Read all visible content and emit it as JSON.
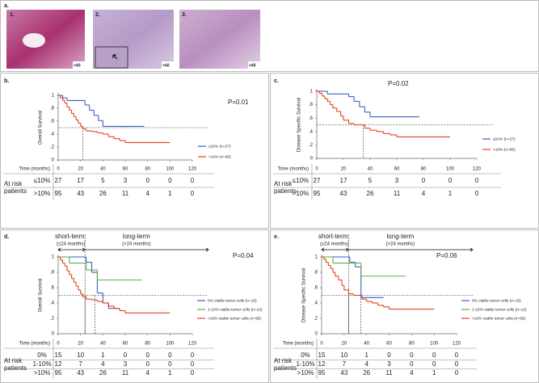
{
  "panel_a": {
    "label": "a.",
    "images": [
      {
        "label": "1.",
        "magnification": "×40"
      },
      {
        "label": "2.",
        "magnification": "×40"
      },
      {
        "label": "3.",
        "magnification": "×40"
      }
    ]
  },
  "chart_data": [
    {
      "type": "step",
      "panel": "b.",
      "ylabel": "Overall Survival",
      "xlabel": "Time (months)",
      "annotation": "P=0.01",
      "xlim": [
        0,
        120
      ],
      "xticks": [
        0,
        20,
        40,
        60,
        80,
        100,
        120
      ],
      "ylim": [
        0,
        1
      ],
      "yticks": [
        0,
        {
          "value": 0.2,
          "label": ".2"
        },
        {
          "value": 0.4,
          "label": ".4"
        },
        {
          "value": 0.6,
          "label": ".6"
        },
        {
          "value": 0.8,
          "label": ".8"
        },
        1
      ],
      "hline": 0.5,
      "vlines": [
        22
      ],
      "series": [
        {
          "name": "≤10% (n=27)",
          "color": "#3a5fbf",
          "x": [
            0,
            4,
            8,
            24,
            28,
            32,
            36,
            40,
            77
          ],
          "values": [
            1,
            0.96,
            0.92,
            0.85,
            0.77,
            0.69,
            0.61,
            0.52,
            0.52
          ]
        },
        {
          "name": ">10% (n=95)",
          "color": "#e8401c",
          "x": [
            0,
            2,
            4,
            6,
            8,
            10,
            12,
            14,
            16,
            18,
            20,
            22,
            25,
            30,
            35,
            40,
            45,
            50,
            55,
            60,
            100
          ],
          "values": [
            1,
            0.96,
            0.92,
            0.88,
            0.82,
            0.77,
            0.72,
            0.67,
            0.62,
            0.57,
            0.52,
            0.48,
            0.45,
            0.44,
            0.42,
            0.4,
            0.36,
            0.33,
            0.3,
            0.27,
            0.27
          ]
        }
      ],
      "risk_table": {
        "label": "At risk patients",
        "rows": [
          {
            "name": "≤10%",
            "color": "#3a5fbf",
            "values": [
              27,
              17,
              5,
              3,
              0,
              0,
              0
            ]
          },
          {
            "name": ">10%",
            "color": "#e8401c",
            "values": [
              95,
              43,
              26,
              11,
              4,
              1,
              0
            ]
          }
        ]
      }
    },
    {
      "type": "step",
      "panel": "c.",
      "ylabel": "Disease Specific Survival",
      "xlabel": "Time (months)",
      "annotation": "P=0.02",
      "xlim": [
        0,
        120
      ],
      "xticks": [
        0,
        20,
        40,
        60,
        80,
        100,
        120
      ],
      "ylim": [
        0,
        1
      ],
      "yticks": [
        0,
        {
          "value": 0.2,
          "label": ".2"
        },
        {
          "value": 0.4,
          "label": ".4"
        },
        {
          "value": 0.6,
          "label": ".6"
        },
        {
          "value": 0.8,
          "label": ".8"
        },
        1
      ],
      "hline": 0.5,
      "vlines": [
        35
      ],
      "series": [
        {
          "name": "≤10% (n=27)",
          "color": "#3a5fbf",
          "x": [
            0,
            8,
            24,
            28,
            32,
            36,
            40,
            77
          ],
          "values": [
            1,
            0.96,
            0.92,
            0.85,
            0.77,
            0.69,
            0.62,
            0.62
          ]
        },
        {
          "name": ">10% (n=95)",
          "color": "#e8401c",
          "x": [
            0,
            2,
            4,
            6,
            8,
            10,
            12,
            15,
            18,
            20,
            24,
            28,
            32,
            36,
            40,
            45,
            50,
            55,
            60,
            100
          ],
          "values": [
            1,
            0.97,
            0.93,
            0.89,
            0.85,
            0.8,
            0.75,
            0.7,
            0.63,
            0.57,
            0.52,
            0.5,
            0.5,
            0.45,
            0.42,
            0.4,
            0.37,
            0.35,
            0.32,
            0.32
          ]
        }
      ],
      "risk_table": {
        "label": "At risk patients",
        "rows": [
          {
            "name": "≤10%",
            "color": "#3a5fbf",
            "values": [
              27,
              17,
              5,
              3,
              0,
              0,
              0
            ]
          },
          {
            "name": ">10%",
            "color": "#e8401c",
            "values": [
              95,
              43,
              26,
              11,
              4,
              1,
              0
            ]
          }
        ]
      }
    },
    {
      "type": "step",
      "panel": "d.",
      "ylabel": "Overall Survival",
      "xlabel": "Time (months)",
      "annotation": "P=0.04",
      "short_term": "short-term",
      "short_term_range": "(≤24 months)",
      "long_term": "long-term",
      "long_term_range": "(>24 months)",
      "term_split": 24,
      "xlim": [
        0,
        120
      ],
      "xticks": [
        0,
        20,
        40,
        60,
        80,
        100,
        120
      ],
      "ylim": [
        0,
        1
      ],
      "yticks": [
        0,
        {
          "value": 0.2,
          "label": ".2"
        },
        {
          "value": 0.4,
          "label": ".4"
        },
        {
          "value": 0.6,
          "label": ".6"
        },
        {
          "value": 0.8,
          "label": ".8"
        },
        1
      ],
      "hline": 0.5,
      "vlines": [
        24,
        33
      ],
      "series": [
        {
          "name": "0% viable tumor cells (n=15)",
          "color": "#3a5fbf",
          "x": [
            0,
            25,
            30,
            35,
            40,
            45,
            55
          ],
          "values": [
            1,
            0.93,
            0.8,
            0.53,
            0.4,
            0.33,
            0.33
          ]
        },
        {
          "name": "1-10% viable tumor cells (n=12)",
          "color": "#5cb04a",
          "x": [
            0,
            10,
            25,
            35,
            75
          ],
          "values": [
            1,
            0.92,
            0.83,
            0.7,
            0.7
          ]
        },
        {
          "name": ">10% viable tumor cells (n=95)",
          "color": "#e8401c",
          "x": [
            0,
            2,
            4,
            6,
            8,
            10,
            12,
            14,
            16,
            18,
            20,
            22,
            25,
            30,
            35,
            40,
            45,
            50,
            55,
            60,
            100
          ],
          "values": [
            1,
            0.96,
            0.92,
            0.88,
            0.82,
            0.77,
            0.72,
            0.67,
            0.62,
            0.57,
            0.52,
            0.48,
            0.45,
            0.44,
            0.42,
            0.4,
            0.36,
            0.33,
            0.3,
            0.27,
            0.27
          ]
        }
      ],
      "risk_table": {
        "label": "At risk patients",
        "rows": [
          {
            "name": "0%",
            "color": "#3a5fbf",
            "values": [
              15,
              10,
              1,
              0,
              0,
              0,
              0
            ]
          },
          {
            "name": "1-10%",
            "color": "#5cb04a",
            "values": [
              12,
              7,
              4,
              3,
              0,
              0,
              0
            ]
          },
          {
            "name": ">10%",
            "color": "#e8401c",
            "values": [
              95,
              43,
              26,
              11,
              4,
              1,
              0
            ]
          }
        ]
      }
    },
    {
      "type": "step",
      "panel": "e.",
      "ylabel": "Disease Specific Survival",
      "xlabel": "Time (months)",
      "annotation": "P=0.06",
      "short_term": "short-term",
      "short_term_range": "(≤24 months)",
      "long_term": "long-term",
      "long_term_range": "(>24 months)",
      "term_split": 24,
      "xlim": [
        0,
        120
      ],
      "xticks": [
        0,
        20,
        40,
        60,
        80,
        100,
        120
      ],
      "ylim": [
        0,
        1
      ],
      "yticks": [
        0,
        {
          "value": 0.2,
          "label": ".2"
        },
        {
          "value": 0.4,
          "label": ".4"
        },
        {
          "value": 0.6,
          "label": ".6"
        },
        {
          "value": 0.8,
          "label": ".8"
        },
        1
      ],
      "hline": 0.5,
      "vlines": [
        24,
        35
      ],
      "series": [
        {
          "name": "0% viable tumor cells (n=15)",
          "color": "#3a5fbf",
          "x": [
            0,
            25,
            30,
            35,
            55
          ],
          "values": [
            1,
            0.93,
            0.87,
            0.47,
            0.47
          ]
        },
        {
          "name": "1-10% viable tumor cells (n=12)",
          "color": "#5cb04a",
          "x": [
            0,
            10,
            35,
            75
          ],
          "values": [
            1,
            0.92,
            0.75,
            0.75
          ]
        },
        {
          "name": ">10% viable tumor cells (n=95)",
          "color": "#e8401c",
          "x": [
            0,
            2,
            4,
            6,
            8,
            10,
            12,
            15,
            18,
            20,
            24,
            28,
            32,
            36,
            40,
            45,
            50,
            55,
            60,
            100
          ],
          "values": [
            1,
            0.97,
            0.93,
            0.89,
            0.85,
            0.8,
            0.75,
            0.7,
            0.63,
            0.57,
            0.52,
            0.5,
            0.5,
            0.45,
            0.42,
            0.4,
            0.37,
            0.35,
            0.32,
            0.32
          ]
        }
      ],
      "risk_table": {
        "label": "At risk patients",
        "rows": [
          {
            "name": "0%",
            "color": "#3a5fbf",
            "values": [
              15,
              10,
              1,
              0,
              0,
              0,
              0
            ]
          },
          {
            "name": "1-10%",
            "color": "#5cb04a",
            "values": [
              12,
              7,
              4,
              3,
              0,
              0,
              0
            ]
          },
          {
            "name": ">10%",
            "color": "#e8401c",
            "values": [
              95,
              43,
              26,
              11,
              4,
              1,
              0
            ]
          }
        ]
      }
    }
  ]
}
